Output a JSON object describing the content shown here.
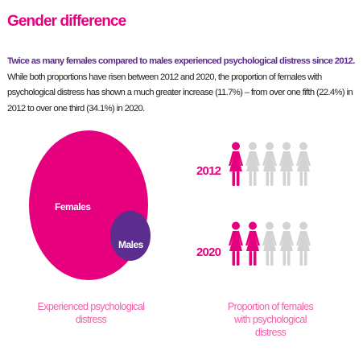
{
  "title": "Gender difference",
  "intro": {
    "lead": "Twice as many females compared to males experienced psychological distress since 2012.",
    "body": " While both proportions have risen between 2012 and 2020, the proportion of females with psychological distress has shown a much greater increase (11.7%) – from over one fifth (22.4%) in 2012 to over one third (34.1%) in 2020."
  },
  "bubbles": {
    "females_label": "Females",
    "males_label": "Males",
    "caption": "Experienced psychological distress",
    "colors": {
      "females": "#e6007e",
      "males": "#5b2d8e"
    }
  },
  "pictogram": {
    "caption": "Proportion of females with psychological distress",
    "total_figures": 5,
    "rows": [
      {
        "year": "2012",
        "highlighted": 1
      },
      {
        "year": "2020",
        "highlighted": 2
      }
    ],
    "colors": {
      "highlight": "#e6007e",
      "base": "#d3d3d3"
    }
  }
}
